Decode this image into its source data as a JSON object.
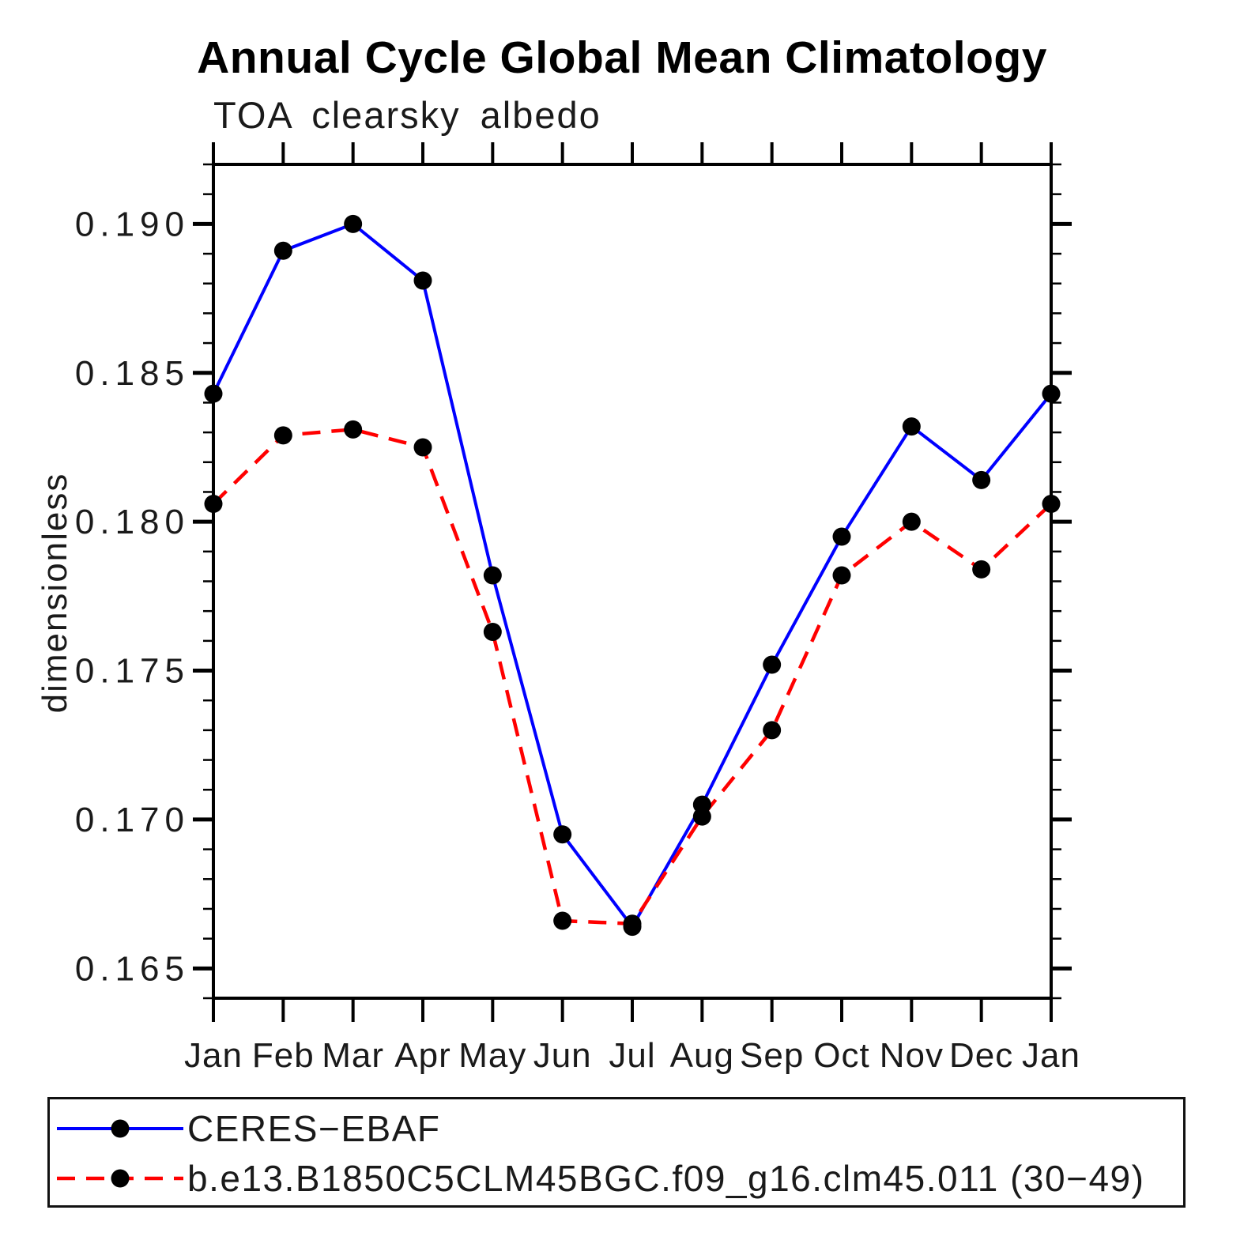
{
  "header": {
    "title": "Annual Cycle Global Mean Climatology",
    "subtitle": "TOA clearsky albedo"
  },
  "chart_data": {
    "type": "line",
    "title": "Annual Cycle Global Mean Climatology",
    "subtitle": "TOA clearsky albedo",
    "xlabel": "",
    "ylabel": "dimensionless",
    "categories": [
      "Jan",
      "Feb",
      "Mar",
      "Apr",
      "May",
      "Jun",
      "Jul",
      "Aug",
      "Sep",
      "Oct",
      "Nov",
      "Dec",
      "Jan"
    ],
    "ylim": [
      0.164,
      0.192
    ],
    "ytick_major": [
      0.165,
      0.17,
      0.175,
      0.18,
      0.185,
      0.19
    ],
    "ytick_labels": [
      "0.165",
      "0.170",
      "0.175",
      "0.180",
      "0.185",
      "0.190"
    ],
    "ytick_minor_step": 0.001,
    "grid": false,
    "legend_position": "bottom",
    "marker": "filled-circle",
    "marker_color": "#000000",
    "series": [
      {
        "name": "CERES−EBAF",
        "color": "#0000ff",
        "style": "solid",
        "values": [
          0.1843,
          0.1891,
          0.19,
          0.1881,
          0.1782,
          0.1695,
          0.1664,
          0.1705,
          0.1752,
          0.1795,
          0.1832,
          0.1814,
          0.1843
        ]
      },
      {
        "name": "b.e13.B1850C5CLM45BGC.f09_g16.clm45.011 (30−49)",
        "color": "#ff0000",
        "style": "dashed",
        "values": [
          0.1806,
          0.1829,
          0.1831,
          0.1825,
          0.1763,
          0.1666,
          0.1665,
          0.1701,
          0.173,
          0.1782,
          0.18,
          0.1784,
          0.1806
        ]
      }
    ]
  }
}
